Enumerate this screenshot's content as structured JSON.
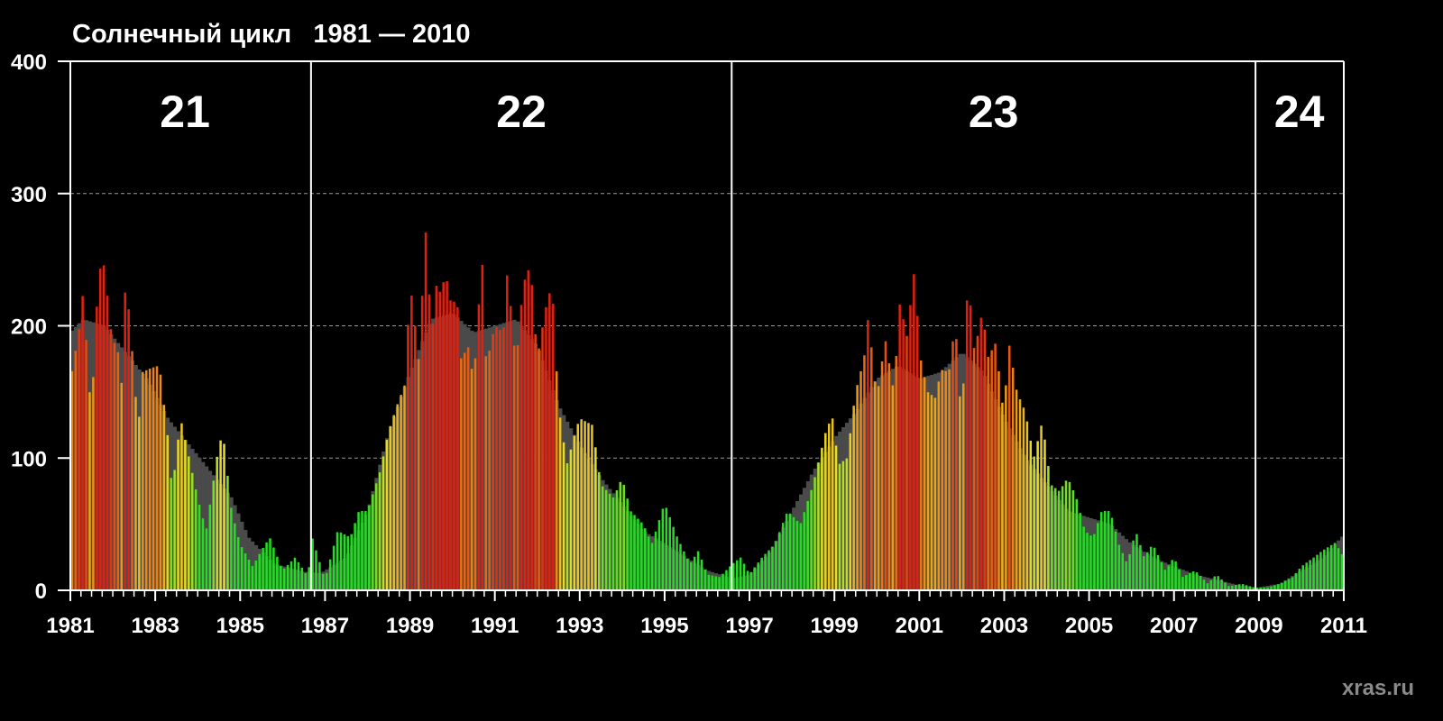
{
  "title": "Солнечный цикл   1981 — 2010",
  "watermark": "xras.ru",
  "colors": {
    "background": "#000000",
    "axis": "#ffffff",
    "grid": "#9a9a9a",
    "smoothed": "#4a4a4a",
    "low": "#22dd22",
    "mid": "#e8e020",
    "high": "#f08a10",
    "peak": "#e02010"
  },
  "chart_data": {
    "type": "bar",
    "title": "Солнечный цикл   1981 — 2010",
    "xlabel": "",
    "ylabel": "",
    "xlim": [
      1981,
      2011
    ],
    "ylim": [
      0,
      400
    ],
    "yticks": [
      "0",
      "100",
      "200",
      "300",
      "400"
    ],
    "xticks": [
      "1981",
      "1983",
      "1985",
      "1987",
      "1989",
      "1991",
      "1993",
      "1995",
      "1997",
      "1999",
      "2001",
      "2003",
      "2005",
      "2007",
      "2009",
      "2011"
    ],
    "cycles": [
      {
        "label": "21",
        "start": 1981.0,
        "end": 1986.67
      },
      {
        "label": "22",
        "start": 1986.67,
        "end": 1996.58
      },
      {
        "label": "23",
        "start": 1996.58,
        "end": 2008.92
      },
      {
        "label": "24",
        "start": 2008.92,
        "end": 2011.0
      }
    ],
    "boundaries": [
      1986.67,
      1996.58,
      2008.92
    ],
    "series": [
      {
        "name": "smoothed",
        "description": "13-month smoothed sunspot number (grey)",
        "keypoints": [
          [
            1981.0,
            195
          ],
          [
            1981.3,
            205
          ],
          [
            1981.8,
            200
          ],
          [
            1982.3,
            180
          ],
          [
            1982.8,
            160
          ],
          [
            1983.3,
            130
          ],
          [
            1983.8,
            110
          ],
          [
            1984.3,
            90
          ],
          [
            1984.8,
            70
          ],
          [
            1985.2,
            40
          ],
          [
            1985.8,
            20
          ],
          [
            1986.5,
            14
          ],
          [
            1986.9,
            13
          ],
          [
            1987.5,
            25
          ],
          [
            1988.0,
            60
          ],
          [
            1988.5,
            120
          ],
          [
            1989.0,
            165
          ],
          [
            1989.5,
            205
          ],
          [
            1990.0,
            210
          ],
          [
            1990.5,
            195
          ],
          [
            1991.0,
            200
          ],
          [
            1991.5,
            205
          ],
          [
            1992.0,
            185
          ],
          [
            1992.5,
            140
          ],
          [
            1993.0,
            110
          ],
          [
            1993.5,
            85
          ],
          [
            1994.0,
            65
          ],
          [
            1994.5,
            45
          ],
          [
            1995.0,
            35
          ],
          [
            1995.5,
            25
          ],
          [
            1996.0,
            15
          ],
          [
            1996.6,
            9
          ],
          [
            1997.0,
            12
          ],
          [
            1997.5,
            30
          ],
          [
            1998.0,
            60
          ],
          [
            1998.5,
            90
          ],
          [
            1999.0,
            115
          ],
          [
            1999.5,
            135
          ],
          [
            2000.0,
            160
          ],
          [
            2000.5,
            170
          ],
          [
            2001.0,
            160
          ],
          [
            2001.5,
            165
          ],
          [
            2002.0,
            180
          ],
          [
            2002.5,
            165
          ],
          [
            2003.0,
            130
          ],
          [
            2003.5,
            100
          ],
          [
            2004.0,
            80
          ],
          [
            2004.5,
            60
          ],
          [
            2005.0,
            55
          ],
          [
            2005.5,
            50
          ],
          [
            2006.0,
            35
          ],
          [
            2006.5,
            25
          ],
          [
            2007.0,
            18
          ],
          [
            2007.5,
            12
          ],
          [
            2008.0,
            8
          ],
          [
            2008.5,
            4
          ],
          [
            2008.95,
            2
          ],
          [
            2009.5,
            5
          ],
          [
            2010.0,
            15
          ],
          [
            2010.5,
            25
          ],
          [
            2011.0,
            42
          ]
        ]
      },
      {
        "name": "monthly",
        "description": "monthly sunspot number (colored bars)",
        "keypoints": [
          [
            1981.0,
            158
          ],
          [
            1981.2,
            195
          ],
          [
            1981.3,
            225
          ],
          [
            1981.5,
            130
          ],
          [
            1981.6,
            205
          ],
          [
            1981.7,
            243
          ],
          [
            1981.8,
            246
          ],
          [
            1981.9,
            215
          ],
          [
            1982.0,
            185
          ],
          [
            1982.1,
            190
          ],
          [
            1982.2,
            150
          ],
          [
            1982.3,
            232
          ],
          [
            1982.35,
            222
          ],
          [
            1982.5,
            165
          ],
          [
            1982.6,
            120
          ],
          [
            1982.7,
            165
          ],
          [
            1982.9,
            168
          ],
          [
            1983.1,
            170
          ],
          [
            1983.3,
            115
          ],
          [
            1983.4,
            75
          ],
          [
            1983.6,
            130
          ],
          [
            1983.8,
            100
          ],
          [
            1984.0,
            70
          ],
          [
            1984.2,
            45
          ],
          [
            1984.5,
            110
          ],
          [
            1984.6,
            118
          ],
          [
            1984.8,
            60
          ],
          [
            1985.0,
            35
          ],
          [
            1985.3,
            18
          ],
          [
            1985.5,
            30
          ],
          [
            1985.7,
            40
          ],
          [
            1986.0,
            15
          ],
          [
            1986.3,
            25
          ],
          [
            1986.6,
            10
          ],
          [
            1986.7,
            40
          ],
          [
            1987.0,
            8
          ],
          [
            1987.3,
            45
          ],
          [
            1987.6,
            40
          ],
          [
            1987.8,
            60
          ],
          [
            1988.0,
            60
          ],
          [
            1988.3,
            90
          ],
          [
            1988.5,
            120
          ],
          [
            1988.7,
            140
          ],
          [
            1988.9,
            157
          ],
          [
            1989.0,
            232
          ],
          [
            1989.1,
            210
          ],
          [
            1989.2,
            170
          ],
          [
            1989.4,
            285
          ],
          [
            1989.5,
            180
          ],
          [
            1989.6,
            232
          ],
          [
            1989.7,
            225
          ],
          [
            1989.85,
            238
          ],
          [
            1990.0,
            212
          ],
          [
            1990.1,
            227
          ],
          [
            1990.2,
            175
          ],
          [
            1990.4,
            185
          ],
          [
            1990.5,
            155
          ],
          [
            1990.7,
            253
          ],
          [
            1990.8,
            170
          ],
          [
            1991.0,
            200
          ],
          [
            1991.2,
            195
          ],
          [
            1991.3,
            242
          ],
          [
            1991.5,
            170
          ],
          [
            1991.65,
            225
          ],
          [
            1991.75,
            242
          ],
          [
            1991.85,
            242
          ],
          [
            1992.0,
            175
          ],
          [
            1992.2,
            213
          ],
          [
            1992.35,
            232
          ],
          [
            1992.5,
            140
          ],
          [
            1992.7,
            95
          ],
          [
            1992.9,
            120
          ],
          [
            1993.0,
            130
          ],
          [
            1993.3,
            125
          ],
          [
            1993.5,
            80
          ],
          [
            1993.8,
            70
          ],
          [
            1994.0,
            85
          ],
          [
            1994.2,
            60
          ],
          [
            1994.5,
            50
          ],
          [
            1994.7,
            35
          ],
          [
            1995.0,
            66
          ],
          [
            1995.3,
            40
          ],
          [
            1995.6,
            20
          ],
          [
            1995.8,
            30
          ],
          [
            1996.0,
            12
          ],
          [
            1996.3,
            10
          ],
          [
            1996.6,
            20
          ],
          [
            1996.8,
            25
          ],
          [
            1997.0,
            12
          ],
          [
            1997.3,
            25
          ],
          [
            1997.6,
            35
          ],
          [
            1997.9,
            60
          ],
          [
            1998.2,
            50
          ],
          [
            1998.5,
            80
          ],
          [
            1998.8,
            120
          ],
          [
            1998.95,
            132
          ],
          [
            1999.1,
            95
          ],
          [
            1999.3,
            100
          ],
          [
            1999.5,
            150
          ],
          [
            1999.7,
            175
          ],
          [
            1999.8,
            207
          ],
          [
            2000.0,
            145
          ],
          [
            2000.2,
            190
          ],
          [
            2000.4,
            150
          ],
          [
            2000.55,
            220
          ],
          [
            2000.7,
            190
          ],
          [
            2000.9,
            246
          ],
          [
            2001.0,
            180
          ],
          [
            2001.2,
            150
          ],
          [
            2001.4,
            145
          ],
          [
            2001.5,
            167
          ],
          [
            2001.7,
            165
          ],
          [
            2001.85,
            203
          ],
          [
            2002.0,
            125
          ],
          [
            2002.15,
            238
          ],
          [
            2002.3,
            180
          ],
          [
            2002.5,
            213
          ],
          [
            2002.6,
            175
          ],
          [
            2002.8,
            187
          ],
          [
            2003.0,
            130
          ],
          [
            2003.1,
            190
          ],
          [
            2003.3,
            150
          ],
          [
            2003.5,
            135
          ],
          [
            2003.7,
            100
          ],
          [
            2003.9,
            128
          ],
          [
            2004.1,
            80
          ],
          [
            2004.3,
            75
          ],
          [
            2004.5,
            85
          ],
          [
            2004.7,
            70
          ],
          [
            2004.9,
            45
          ],
          [
            2005.1,
            40
          ],
          [
            2005.3,
            60
          ],
          [
            2005.5,
            60
          ],
          [
            2005.7,
            35
          ],
          [
            2005.9,
            20
          ],
          [
            2006.1,
            45
          ],
          [
            2006.3,
            25
          ],
          [
            2006.5,
            35
          ],
          [
            2006.8,
            15
          ],
          [
            2007.0,
            25
          ],
          [
            2007.2,
            10
          ],
          [
            2007.5,
            15
          ],
          [
            2007.8,
            5
          ],
          [
            2008.0,
            12
          ],
          [
            2008.3,
            3
          ],
          [
            2008.6,
            5
          ],
          [
            2008.9,
            2
          ],
          [
            2009.2,
            2
          ],
          [
            2009.5,
            5
          ],
          [
            2009.8,
            10
          ],
          [
            2010.0,
            18
          ],
          [
            2010.3,
            25
          ],
          [
            2010.5,
            30
          ],
          [
            2010.8,
            36
          ],
          [
            2011.0,
            25
          ]
        ]
      }
    ]
  }
}
